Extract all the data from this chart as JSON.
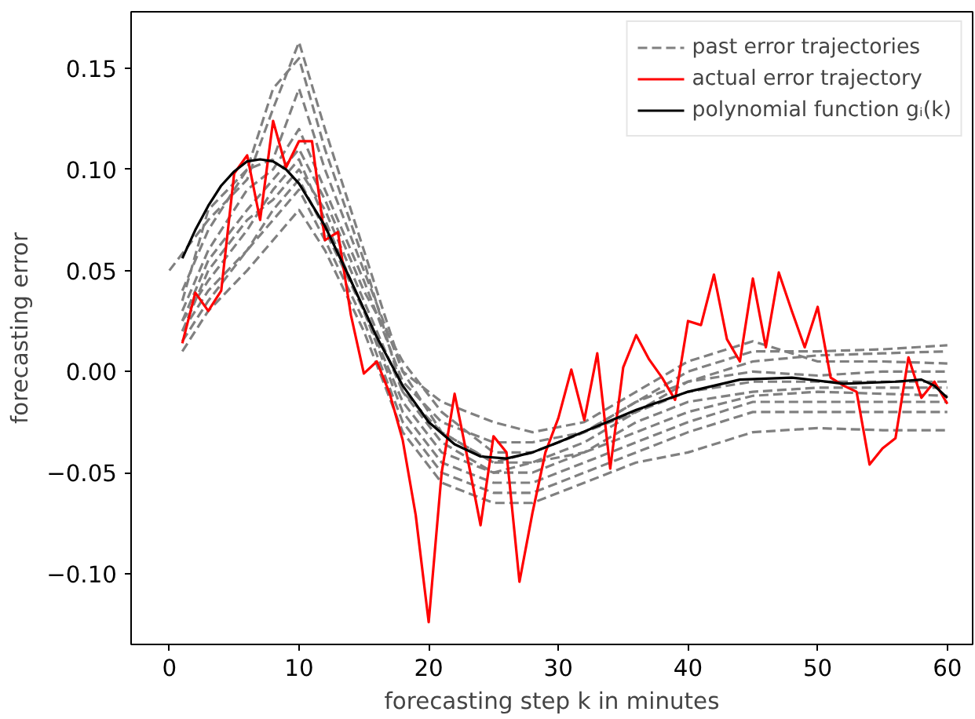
{
  "chart_data": {
    "type": "line",
    "xlabel": "forecasting step k in minutes",
    "ylabel": "forecasting error",
    "xlim": [
      -2.95,
      61.95
    ],
    "ylim": [
      -0.135,
      0.178
    ],
    "xticks": [
      0,
      10,
      20,
      30,
      40,
      50,
      60
    ],
    "yticks": [
      {
        "value": -0.1,
        "label": "−0.10"
      },
      {
        "value": -0.05,
        "label": "−0.05"
      },
      {
        "value": 0,
        "label": "0.00"
      },
      {
        "value": 0.05,
        "label": "0.05"
      },
      {
        "value": 0.1,
        "label": "0.10"
      },
      {
        "value": 0.15,
        "label": "0.15"
      }
    ],
    "grid": false,
    "legend": "top right",
    "series": [
      {
        "name": "past error trajectories",
        "color": "#808080",
        "line_style": "dashed",
        "x": [
          0,
          3,
          6,
          8,
          10,
          12,
          15,
          18,
          21,
          25,
          28,
          32,
          36,
          40,
          45,
          50,
          55,
          60
        ],
        "values": [
          0.05,
          0.075,
          0.095,
          0.13,
          0.163,
          0.12,
          0.06,
          0.0,
          -0.03,
          -0.045,
          -0.04,
          -0.03,
          -0.015,
          0.0,
          0.01,
          0.01,
          0.011,
          0.013
        ]
      },
      {
        "color": "#808080",
        "line_style": "dashed",
        "x": [
          1,
          3,
          6,
          8,
          10,
          12,
          15,
          18,
          21,
          25,
          28,
          32,
          36,
          40,
          45,
          50,
          55,
          60
        ],
        "values": [
          0.04,
          0.07,
          0.1,
          0.14,
          0.155,
          0.11,
          0.055,
          -0.01,
          -0.035,
          -0.05,
          -0.045,
          -0.035,
          -0.02,
          -0.005,
          0.005,
          0.008,
          0.009,
          0.01
        ]
      },
      {
        "color": "#808080",
        "line_style": "dashed",
        "x": [
          1,
          3,
          6,
          8,
          10,
          12,
          15,
          18,
          21,
          25,
          28,
          32,
          36,
          40,
          45,
          50,
          55,
          60
        ],
        "values": [
          0.035,
          0.08,
          0.1,
          0.105,
          0.14,
          0.1,
          0.05,
          0.0,
          -0.015,
          -0.025,
          -0.03,
          -0.025,
          -0.01,
          0.005,
          0.015,
          0.005,
          0.005,
          0.004
        ]
      },
      {
        "color": "#808080",
        "line_style": "dashed",
        "x": [
          1,
          3,
          6,
          8,
          10,
          12,
          15,
          18,
          21,
          25,
          28,
          32,
          36,
          40,
          45,
          50,
          55,
          60
        ],
        "values": [
          0.03,
          0.06,
          0.09,
          0.1,
          0.12,
          0.09,
          0.045,
          -0.005,
          -0.025,
          -0.035,
          -0.035,
          -0.03,
          -0.015,
          -0.005,
          0.0,
          -0.002,
          0.0,
          0.0
        ]
      },
      {
        "color": "#808080",
        "line_style": "dashed",
        "x": [
          1,
          3,
          6,
          8,
          10,
          12,
          15,
          18,
          21,
          25,
          28,
          32,
          36,
          40,
          45,
          50,
          55,
          60
        ],
        "values": [
          0.025,
          0.055,
          0.08,
          0.095,
          0.11,
          0.085,
          0.04,
          0.005,
          -0.02,
          -0.04,
          -0.04,
          -0.03,
          -0.02,
          -0.01,
          -0.005,
          -0.005,
          -0.005,
          -0.005
        ]
      },
      {
        "color": "#808080",
        "line_style": "dashed",
        "x": [
          1,
          3,
          6,
          8,
          10,
          12,
          15,
          18,
          21,
          25,
          28,
          32,
          36,
          40,
          45,
          50,
          55,
          60
        ],
        "values": [
          0.02,
          0.05,
          0.075,
          0.085,
          0.1,
          0.08,
          0.035,
          -0.01,
          -0.03,
          -0.045,
          -0.045,
          -0.04,
          -0.025,
          -0.015,
          -0.01,
          -0.008,
          -0.008,
          -0.008
        ]
      },
      {
        "color": "#808080",
        "line_style": "dashed",
        "x": [
          1,
          3,
          6,
          8,
          10,
          12,
          15,
          18,
          21,
          25,
          28,
          32,
          36,
          40,
          45,
          50,
          55,
          60
        ],
        "values": [
          0.025,
          0.045,
          0.07,
          0.09,
          0.105,
          0.075,
          0.03,
          -0.015,
          -0.04,
          -0.05,
          -0.05,
          -0.04,
          -0.03,
          -0.02,
          -0.012,
          -0.01,
          -0.011,
          -0.012
        ]
      },
      {
        "color": "#808080",
        "line_style": "dashed",
        "x": [
          1,
          3,
          6,
          8,
          10,
          12,
          15,
          18,
          21,
          25,
          28,
          32,
          36,
          40,
          45,
          50,
          55,
          60
        ],
        "values": [
          0.02,
          0.04,
          0.06,
          0.08,
          0.095,
          0.07,
          0.03,
          -0.02,
          -0.045,
          -0.055,
          -0.055,
          -0.045,
          -0.035,
          -0.025,
          -0.015,
          -0.015,
          -0.015,
          -0.015
        ]
      },
      {
        "color": "#808080",
        "line_style": "dashed",
        "x": [
          1,
          3,
          6,
          8,
          10,
          12,
          15,
          18,
          21,
          25,
          28,
          32,
          36,
          40,
          45,
          50,
          55,
          60
        ],
        "values": [
          0.015,
          0.035,
          0.06,
          0.075,
          0.09,
          0.065,
          0.025,
          -0.025,
          -0.05,
          -0.06,
          -0.06,
          -0.05,
          -0.04,
          -0.03,
          -0.02,
          -0.02,
          -0.02,
          -0.02
        ]
      },
      {
        "color": "#808080",
        "line_style": "dashed",
        "x": [
          1,
          3,
          6,
          8,
          10,
          12,
          15,
          18,
          21,
          25,
          28,
          32,
          36,
          40,
          45,
          50,
          55,
          60
        ],
        "values": [
          0.01,
          0.03,
          0.05,
          0.065,
          0.08,
          0.06,
          0.02,
          -0.03,
          -0.055,
          -0.065,
          -0.065,
          -0.055,
          -0.045,
          -0.04,
          -0.03,
          -0.028,
          -0.029,
          -0.029
        ]
      },
      {
        "name": "actual error trajectory",
        "color": "#ff0000",
        "line_style": "solid",
        "x": [
          1,
          2,
          3,
          4,
          5,
          6,
          7,
          8,
          9,
          10,
          11,
          12,
          13,
          14,
          15,
          16,
          17,
          18,
          19,
          20,
          21,
          22,
          23,
          24,
          25,
          26,
          27,
          28,
          29,
          30,
          31,
          32,
          33,
          34,
          35,
          36,
          37,
          38,
          39,
          40,
          41,
          42,
          43,
          44,
          45,
          46,
          47,
          48,
          49,
          50,
          51,
          52,
          53,
          54,
          55,
          56,
          57,
          58,
          59,
          60
        ],
        "values": [
          0.014,
          0.039,
          0.03,
          0.04,
          0.098,
          0.107,
          0.075,
          0.124,
          0.101,
          0.114,
          0.114,
          0.065,
          0.069,
          0.028,
          -0.001,
          0.005,
          -0.011,
          -0.034,
          -0.071,
          -0.124,
          -0.05,
          -0.011,
          -0.043,
          -0.076,
          -0.032,
          -0.04,
          -0.104,
          -0.07,
          -0.04,
          -0.023,
          0.001,
          -0.024,
          0.009,
          -0.048,
          0.002,
          0.018,
          0.006,
          -0.003,
          -0.014,
          0.025,
          0.023,
          0.048,
          0.016,
          0.005,
          0.046,
          0.012,
          0.049,
          0.03,
          0.012,
          0.032,
          -0.003,
          -0.007,
          -0.01,
          -0.046,
          -0.038,
          -0.033,
          0.007,
          -0.013,
          -0.005,
          -0.016
        ]
      },
      {
        "name": "polynomial function gᵢ(k)",
        "color": "#000000",
        "line_style": "solid",
        "x": [
          1,
          2,
          3,
          4,
          5,
          6,
          7,
          8,
          9,
          10,
          12,
          14,
          16,
          18,
          20,
          22,
          24,
          26,
          28,
          30,
          33,
          36,
          40,
          44,
          48,
          52,
          56,
          58,
          59,
          60
        ],
        "values": [
          0.056,
          0.07,
          0.082,
          0.092,
          0.099,
          0.104,
          0.105,
          0.104,
          0.1,
          0.093,
          0.072,
          0.045,
          0.017,
          -0.007,
          -0.025,
          -0.036,
          -0.042,
          -0.043,
          -0.04,
          -0.035,
          -0.027,
          -0.019,
          -0.01,
          -0.004,
          -0.003,
          -0.006,
          -0.005,
          -0.004,
          -0.007,
          -0.013
        ]
      }
    ]
  }
}
